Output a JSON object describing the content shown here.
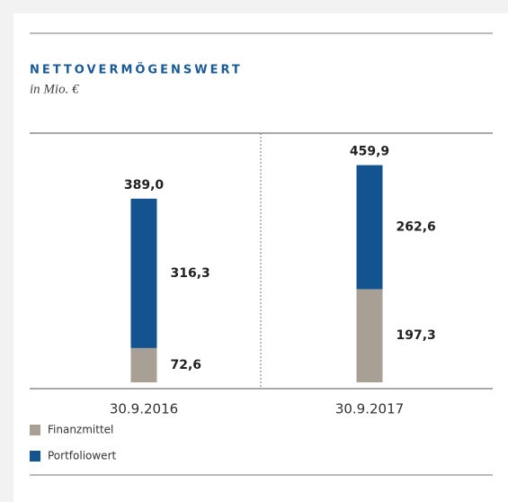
{
  "chart_data": {
    "type": "stacked_bar",
    "title": "NETTOVERMÖGENSWERT",
    "subtitle": "in Mio. €",
    "categories": [
      "30.9.2016",
      "30.9.2017"
    ],
    "series": [
      {
        "name": "Finanzmittel",
        "color": "#a89f95",
        "values": [
          72.6,
          197.3
        ],
        "value_labels": [
          "72,6",
          "197,3"
        ]
      },
      {
        "name": "Portfoliowert",
        "color": "#135390",
        "values": [
          316.3,
          262.6
        ],
        "value_labels": [
          "316,3",
          "262,6"
        ]
      }
    ],
    "totals": [
      389.0,
      459.9
    ],
    "total_labels": [
      "389,0",
      "459,9"
    ]
  }
}
